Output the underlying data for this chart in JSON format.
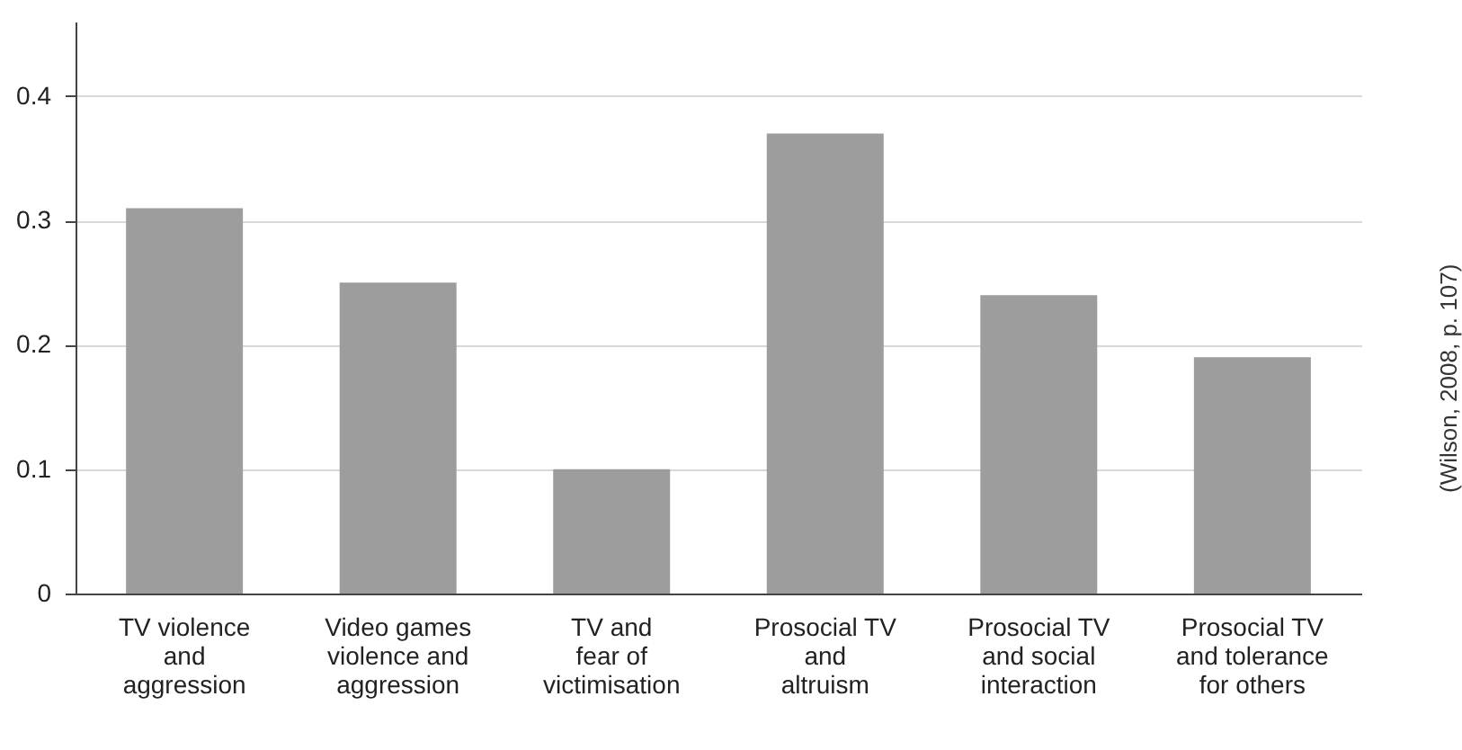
{
  "chart_data": {
    "type": "bar",
    "categories": [
      "TV violence\nand\naggression",
      "Video games\nviolence and\naggression",
      "TV and\nfear of\nvictimisation",
      "Prosocial TV\nand\naltruism",
      "Prosocial TV\nand social\ninteraction",
      "Prosocial TV\nand tolerance\nfor others"
    ],
    "values": [
      0.31,
      0.25,
      0.1,
      0.37,
      0.24,
      0.19
    ],
    "color": "#9d9d9d",
    "ylim": [
      0,
      0.46
    ],
    "yticks": [
      0,
      0.1,
      0.2,
      0.3,
      0.4
    ],
    "grid": "y",
    "annotations": [
      "(Wilson, 2008, p. 107)"
    ]
  }
}
